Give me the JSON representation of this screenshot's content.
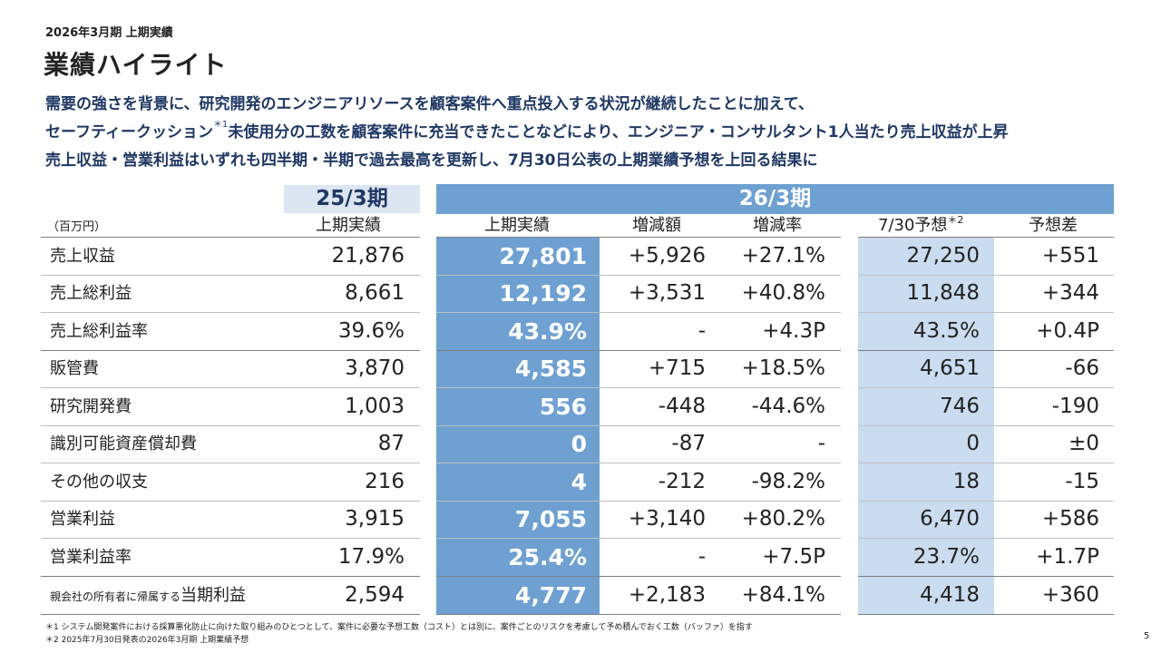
{
  "header": {
    "subtitle": "2026年3月期 上期実績",
    "title": "業績ハイライト"
  },
  "summary": {
    "line1": "需要の強さを背景に、研究開発のエンジニアリソースを顧客案件へ重点投入する状況が継続したことに加えて、",
    "line2a": "セーフティークッション",
    "line2sup": "＊1",
    "line2b": "未使用分の工数を顧客案件に充当できたことなどにより、エンジニア・コンサルタント1人当たり売上収益が上昇",
    "line3": "売上収益・営業利益はいずれも四半期・半期で過去最高を更新し、7月30日公表の上期業績予想を上回る結果に"
  },
  "table": {
    "unit": "（百万円）",
    "period_prev": "25/3期",
    "period_curr": "26/3期",
    "columns": {
      "prev_actual": "上期実績",
      "curr_actual": "上期実績",
      "change_amount": "増減額",
      "change_rate": "増減率",
      "forecast": "7/30予想",
      "forecast_sup": "＊2",
      "forecast_diff": "予想差"
    },
    "rows": [
      {
        "label": "売上収益",
        "prev": "21,876",
        "curr": "27,801",
        "diff": "+5,926",
        "rate": "+27.1%",
        "forecast": "27,250",
        "fdiff": "+551"
      },
      {
        "label": "売上総利益",
        "prev": "8,661",
        "curr": "12,192",
        "diff": "+3,531",
        "rate": "+40.8%",
        "forecast": "11,848",
        "fdiff": "+344"
      },
      {
        "label": "売上総利益率",
        "prev": "39.6%",
        "curr": "43.9%",
        "diff": "-",
        "rate": "+4.3P",
        "forecast": "43.5%",
        "fdiff": "+0.4P"
      },
      {
        "label": "販管費",
        "prev": "3,870",
        "curr": "4,585",
        "diff": "+715",
        "rate": "+18.5%",
        "forecast": "4,651",
        "fdiff": "-66"
      },
      {
        "label": "研究開発費",
        "prev": "1,003",
        "curr": "556",
        "diff": "-448",
        "rate": "-44.6%",
        "forecast": "746",
        "fdiff": "-190"
      },
      {
        "label": "識別可能資産償却費",
        "prev": "87",
        "curr": "0",
        "diff": "-87",
        "rate": "-",
        "forecast": "0",
        "fdiff": "±0"
      },
      {
        "label": "その他の収支",
        "prev": "216",
        "curr": "4",
        "diff": "-212",
        "rate": "-98.2%",
        "forecast": "18",
        "fdiff": "-15"
      },
      {
        "label": "営業利益",
        "prev": "3,915",
        "curr": "7,055",
        "diff": "+3,140",
        "rate": "+80.2%",
        "forecast": "6,470",
        "fdiff": "+586"
      },
      {
        "label": "営業利益率",
        "prev": "17.9%",
        "curr": "25.4%",
        "diff": "-",
        "rate": "+7.5P",
        "forecast": "23.7%",
        "fdiff": "+1.7P"
      },
      {
        "label_small": "親会社の所有者に帰属する",
        "label": "当期利益",
        "prev": "2,594",
        "curr": "4,777",
        "diff": "+2,183",
        "rate": "+84.1%",
        "forecast": "4,418",
        "fdiff": "+360"
      }
    ]
  },
  "footnotes": {
    "note1": "＊1 システム開発案件における採算悪化防止に向けた取り組みのひとつとして、案件に必要な予想工数（コスト）とは別に、案件ごとのリスクを考慮して予め積んでおく工数（バッファ）を指す",
    "note2": "＊2 2025年7月30日発表の2026年3月期 上期業績予想"
  },
  "page_number": "5"
}
